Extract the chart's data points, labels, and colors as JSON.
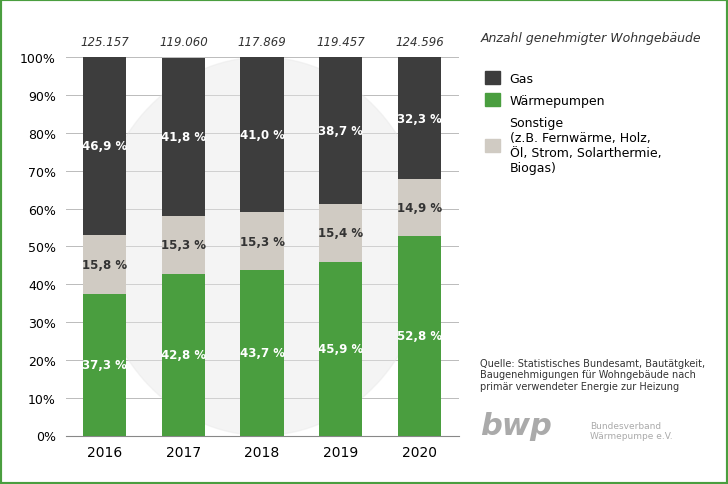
{
  "years": [
    "2016",
    "2017",
    "2018",
    "2019",
    "2020"
  ],
  "totals": [
    "125.157",
    "119.060",
    "117.869",
    "119.457",
    "124.596"
  ],
  "waermepumpen": [
    37.3,
    42.8,
    43.7,
    45.9,
    52.8
  ],
  "sonstige": [
    15.8,
    15.3,
    15.3,
    15.4,
    14.9
  ],
  "gas": [
    46.9,
    41.8,
    41.0,
    38.7,
    32.3
  ],
  "waermepumpen_labels": [
    "37,3 %",
    "42,8 %",
    "43,7 %",
    "45,9 %",
    "52,8 %"
  ],
  "sonstige_labels": [
    "15,8 %",
    "15,3 %",
    "15,3 %",
    "15,4 %",
    "14,9 %"
  ],
  "gas_labels": [
    "46,9 %",
    "41,8 %",
    "41,0 %",
    "38,7 %",
    "32,3 %"
  ],
  "color_gas": "#3d3d3d",
  "color_waermepumpen": "#4a9e3f",
  "color_sonstige": "#d0cbc3",
  "background_color": "#ffffff",
  "legend_gas": "Gas",
  "legend_waermepumpen": "Wärmepumpen",
  "legend_sonstige": "Sonstige\n(z.B. Fernwärme, Holz,\nÖl, Strom, Solarthermie,\nBiogas)",
  "top_label": "Anzahl genehmigter Wohngebäude",
  "source_text": "Quelle: Statistisches Bundesamt, Bautätgkeit,\nBaugenehmigungen für Wohngebäude nach\nprimär verwendeter Energie zur Heizung",
  "yticks": [
    0,
    10,
    20,
    30,
    40,
    50,
    60,
    70,
    80,
    90,
    100
  ]
}
